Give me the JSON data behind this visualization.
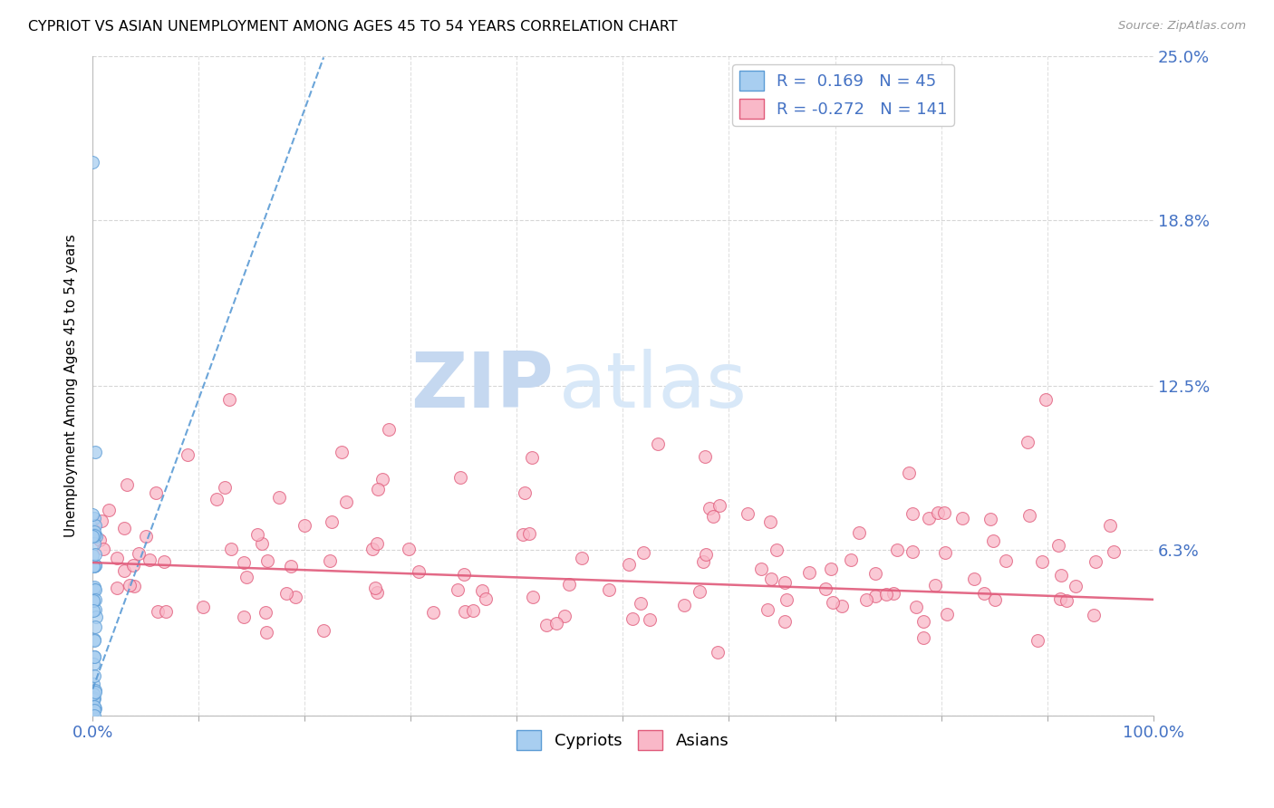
{
  "title": "CYPRIOT VS ASIAN UNEMPLOYMENT AMONG AGES 45 TO 54 YEARS CORRELATION CHART",
  "source": "Source: ZipAtlas.com",
  "ylabel": "Unemployment Among Ages 45 to 54 years",
  "xlim": [
    0,
    1.0
  ],
  "ylim": [
    0,
    0.25
  ],
  "ytick_positions": [
    0.0,
    0.063,
    0.125,
    0.188,
    0.25
  ],
  "ytick_labels": [
    "",
    "6.3%",
    "12.5%",
    "18.8%",
    "25.0%"
  ],
  "xtick_positions": [
    0.0,
    0.1,
    0.2,
    0.3,
    0.4,
    0.5,
    0.6,
    0.7,
    0.8,
    0.9,
    1.0
  ],
  "xtick_labels": [
    "0.0%",
    "",
    "",
    "",
    "",
    "",
    "",
    "",
    "",
    "",
    "100.0%"
  ],
  "cypriot_color": "#A8CEF0",
  "cypriot_edge_color": "#5B9BD5",
  "asian_color": "#F9B8C8",
  "asian_edge_color": "#E05A7A",
  "trend_cypriot_color": "#5B9BD5",
  "trend_asian_color": "#E05A7A",
  "axis_text_color": "#4472C4",
  "cypriot_R": 0.169,
  "cypriot_N": 45,
  "asian_R": -0.272,
  "asian_N": 141,
  "watermark_zip_color": "#C5D8F0",
  "watermark_atlas_color": "#D8E8F8",
  "background_color": "#FFFFFF",
  "grid_color": "#CCCCCC",
  "asian_trend_intercept": 0.058,
  "asian_trend_slope": -0.014,
  "cypriot_trend_slope": 1.1,
  "cypriot_trend_intercept": 0.01
}
